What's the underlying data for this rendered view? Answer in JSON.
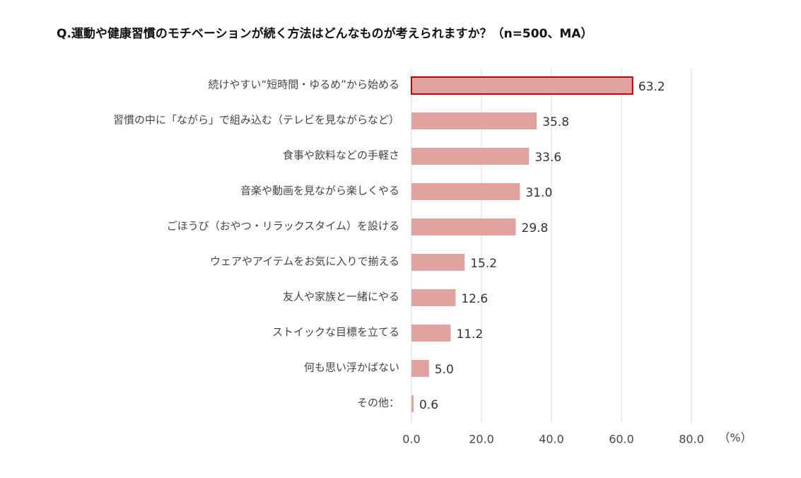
{
  "chart_data": {
    "type": "bar",
    "orientation": "horizontal",
    "title": "Q.運動や健康習慣のモチベーションが続く方法はどんなものが考えられますか？（n=500、MA）",
    "categories": [
      "続けやすい“短時間・ゆるめ”から始める",
      "習慣の中に「ながら」で組み込む（テレビを見ながらなど）",
      "食事や飲料などの手軽さ",
      "音楽や動画を見ながら楽しくやる",
      "ごほうび（おやつ・リラックスタイム）を設ける",
      "ウェアやアイテムをお気に入りで揃える",
      "友人や家族と一緒にやる",
      "ストイックな目標を立てる",
      "何も思い浮かばない",
      "その他："
    ],
    "values": [
      63.2,
      35.8,
      33.6,
      31.0,
      29.8,
      15.2,
      12.6,
      11.2,
      5.0,
      0.6
    ],
    "value_labels": [
      "63.2",
      "35.8",
      "33.6",
      "31.0",
      "29.8",
      "15.2",
      "12.6",
      "11.2",
      "5.0",
      "0.6"
    ],
    "color": "#e0a3a0",
    "highlight_index": 0,
    "highlight_color": "#c00000",
    "xlim": [
      0,
      80
    ],
    "xticks": [
      {
        "value": 0,
        "label": "0.0"
      },
      {
        "value": 20,
        "label": "20.0"
      },
      {
        "value": 40,
        "label": "40.0"
      },
      {
        "value": 60,
        "label": "60.0"
      },
      {
        "value": 80,
        "label": "80.0"
      }
    ],
    "x_unit": "（%）",
    "grid": true
  }
}
